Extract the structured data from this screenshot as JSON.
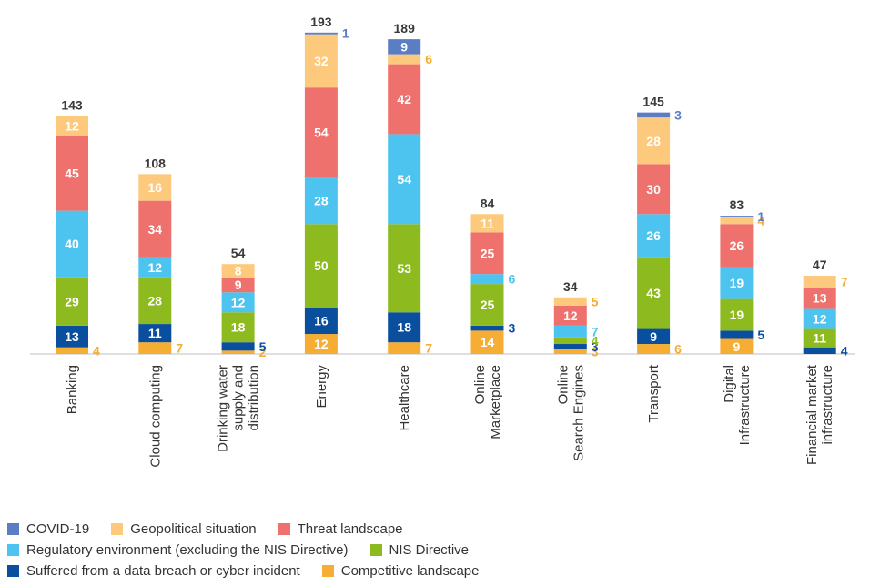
{
  "chart_data": {
    "type": "bar",
    "stacked": true,
    "title": "",
    "xlabel": "",
    "ylabel": "",
    "categories": [
      [
        "Banking"
      ],
      [
        "Cloud computing"
      ],
      [
        "Drinking water",
        "supply and",
        "distribution"
      ],
      [
        "Energy"
      ],
      [
        "Healthcare"
      ],
      [
        "Online",
        "Marketplace"
      ],
      [
        "Online",
        "Search Engines"
      ],
      [
        "Transport"
      ],
      [
        "Digital",
        "Infrastructure"
      ],
      [
        "Financial market",
        "infrastructure"
      ]
    ],
    "totals": [
      143,
      108,
      54,
      193,
      189,
      84,
      34,
      145,
      83,
      47
    ],
    "series": [
      {
        "name": "Competitive landscape",
        "color": "#f6ad34",
        "values": [
          4,
          7,
          2,
          12,
          7,
          14,
          3,
          6,
          9,
          0
        ]
      },
      {
        "name": "Suffered from a data breach or cyber incident",
        "color": "#0a4f9e",
        "values": [
          13,
          11,
          5,
          16,
          18,
          3,
          3,
          9,
          5,
          4
        ]
      },
      {
        "name": "NIS Directive",
        "color": "#8cba1f",
        "values": [
          29,
          28,
          18,
          50,
          53,
          25,
          4,
          43,
          19,
          11
        ]
      },
      {
        "name": "Regulatory environment (excluding the NIS Directive)",
        "color": "#4dc3ef",
        "values": [
          40,
          12,
          12,
          28,
          54,
          6,
          7,
          26,
          19,
          12
        ]
      },
      {
        "name": "Threat landscape",
        "color": "#ee716d",
        "values": [
          45,
          34,
          9,
          54,
          42,
          25,
          12,
          30,
          26,
          13
        ]
      },
      {
        "name": "Geopolitical situation",
        "color": "#fdca7d",
        "values": [
          12,
          16,
          8,
          32,
          6,
          11,
          5,
          28,
          4,
          7
        ]
      },
      {
        "name": "COVID-19",
        "color": "#5b7dc4",
        "values": [
          0,
          0,
          0,
          1,
          9,
          0,
          0,
          3,
          1,
          0
        ]
      }
    ],
    "legend_position": "bottom",
    "grid": false
  },
  "legend": {
    "rows": [
      [
        {
          "label": "COVID-19",
          "color": "#5b7dc4"
        },
        {
          "label": "Geopolitical situation",
          "color": "#fdca7d"
        },
        {
          "label": "Threat landscape",
          "color": "#ee716d"
        }
      ],
      [
        {
          "label": "Regulatory environment (excluding the NIS Directive)",
          "color": "#4dc3ef"
        },
        {
          "label": "NIS Directive",
          "color": "#8cba1f"
        }
      ],
      [
        {
          "label": "Suffered from a data breach or cyber incident",
          "color": "#0a4f9e"
        },
        {
          "label": "Competitive landscape",
          "color": "#f6ad34"
        }
      ]
    ]
  }
}
